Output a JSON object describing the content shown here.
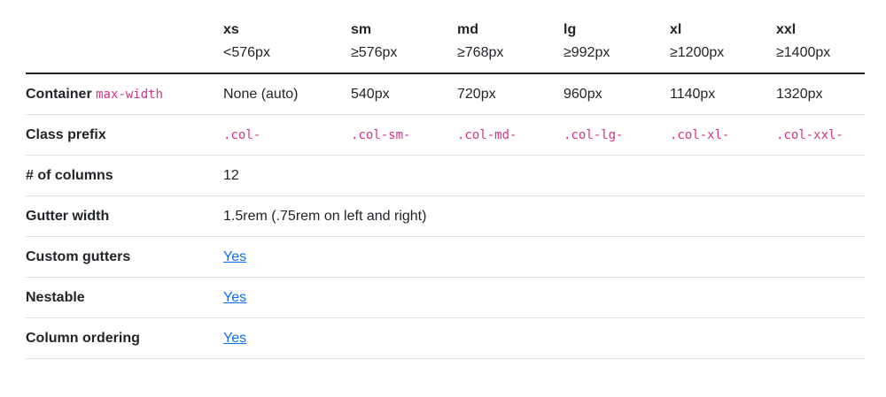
{
  "header": {
    "breakpoints": [
      {
        "name": "xs",
        "range": "<576px"
      },
      {
        "name": "sm",
        "range": "≥576px"
      },
      {
        "name": "md",
        "range": "≥768px"
      },
      {
        "name": "lg",
        "range": "≥992px"
      },
      {
        "name": "xl",
        "range": "≥1200px"
      },
      {
        "name": "xxl",
        "range": "≥1400px"
      }
    ]
  },
  "rows": {
    "container": {
      "label": "Container",
      "code": "max-width",
      "values": [
        "None (auto)",
        "540px",
        "720px",
        "960px",
        "1140px",
        "1320px"
      ]
    },
    "class_prefix": {
      "label": "Class prefix",
      "values": [
        ".col-",
        ".col-sm-",
        ".col-md-",
        ".col-lg-",
        ".col-xl-",
        ".col-xxl-"
      ]
    },
    "columns": {
      "label": "# of columns",
      "value": "12"
    },
    "gutter": {
      "label": "Gutter width",
      "value": "1.5rem (.75rem on left and right)"
    },
    "custom_gutters": {
      "label": "Custom gutters",
      "link": "Yes"
    },
    "nestable": {
      "label": "Nestable",
      "link": "Yes"
    },
    "ordering": {
      "label": "Column ordering",
      "link": "Yes"
    }
  },
  "colors": {
    "text": "#212529",
    "code": "#d63384",
    "link": "#0d6efd",
    "border": "#dee2e6"
  }
}
